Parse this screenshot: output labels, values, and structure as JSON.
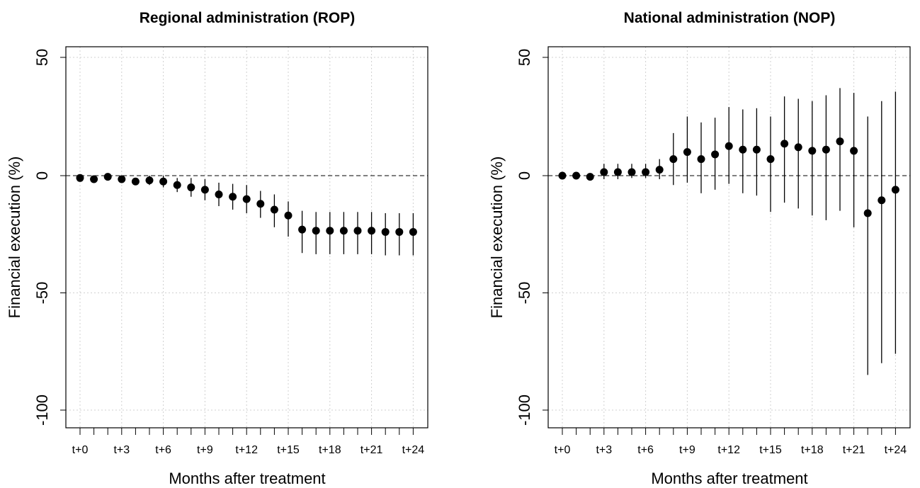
{
  "chart_data": [
    {
      "type": "scatter",
      "title": "Regional administration (ROP)",
      "xlabel": "Months after treatment",
      "ylabel": "Financial execution (%)",
      "ylim": [
        -105,
        55
      ],
      "y_ticks": [
        "50",
        "0",
        "-50",
        "-100"
      ],
      "x_tick_labels": [
        "t+0",
        "t+3",
        "t+6",
        "t+9",
        "t+12",
        "t+15",
        "t+18",
        "t+21",
        "t+24"
      ],
      "reference_line": 0,
      "grid": true,
      "x": [
        0,
        1,
        2,
        3,
        4,
        5,
        6,
        7,
        8,
        9,
        10,
        11,
        12,
        13,
        14,
        15,
        16,
        17,
        18,
        19,
        20,
        21,
        22,
        23,
        24
      ],
      "estimate": [
        -1,
        -1.5,
        -0.5,
        -1.5,
        -2.5,
        -2,
        -2.5,
        -4,
        -5,
        -6,
        -8,
        -9,
        -10,
        -12,
        -14.5,
        -17,
        -23,
        -23.5,
        -23.5,
        -23.5,
        -23.5,
        -23.5,
        -24,
        -24,
        -24
      ],
      "ci_low": [
        -2,
        -2.5,
        -1.5,
        -3,
        -4,
        -4,
        -5,
        -7,
        -9,
        -10.5,
        -13,
        -14.5,
        -16,
        -18,
        -22,
        -26,
        -33,
        -33.5,
        -33.5,
        -33.5,
        -33.5,
        -33.5,
        -34,
        -34,
        -34
      ],
      "ci_high": [
        0,
        -0.5,
        0.5,
        0,
        -1,
        0,
        0,
        -1,
        -1,
        -1.5,
        -3,
        -3.5,
        -4,
        -6.5,
        -8,
        -11,
        -15,
        -15.5,
        -15.5,
        -15.5,
        -15.5,
        -15.5,
        -16,
        -16,
        -16
      ]
    },
    {
      "type": "scatter",
      "title": "National administration (NOP)",
      "xlabel": "Months after treatment",
      "ylabel": "Financial execution (%)",
      "ylim": [
        -105,
        55
      ],
      "y_ticks": [
        "50",
        "0",
        "-50",
        "-100"
      ],
      "x_tick_labels": [
        "t+0",
        "t+3",
        "t+6",
        "t+9",
        "t+12",
        "t+15",
        "t+18",
        "t+21",
        "t+24"
      ],
      "reference_line": 0,
      "grid": true,
      "x": [
        0,
        1,
        2,
        3,
        4,
        5,
        6,
        7,
        8,
        9,
        10,
        11,
        12,
        13,
        14,
        15,
        16,
        17,
        18,
        19,
        20,
        21,
        22,
        23,
        24
      ],
      "estimate": [
        0,
        0,
        -0.5,
        1.5,
        1.5,
        1.5,
        1.5,
        2.5,
        7,
        10,
        7,
        9,
        12.5,
        11,
        11,
        7,
        13.5,
        12,
        10.5,
        11,
        14.5,
        10.5,
        -16,
        -10.5,
        -6
      ],
      "ci_low": [
        -1,
        -1,
        -1.5,
        -1.5,
        -1.5,
        -1,
        -1,
        -1.5,
        -4,
        -3,
        -7.5,
        -6,
        -3.5,
        -7.5,
        -8.5,
        -15.5,
        -11.5,
        -14,
        -17,
        -19,
        -15,
        -22,
        -85,
        -80,
        -76
      ],
      "ci_high": [
        1,
        1,
        0.5,
        5,
        5,
        5,
        5,
        7,
        18,
        25,
        22.5,
        24.5,
        29,
        28,
        28.5,
        25,
        33.5,
        32.5,
        31.5,
        34,
        37,
        35,
        25,
        31.5,
        35.5
      ]
    }
  ]
}
